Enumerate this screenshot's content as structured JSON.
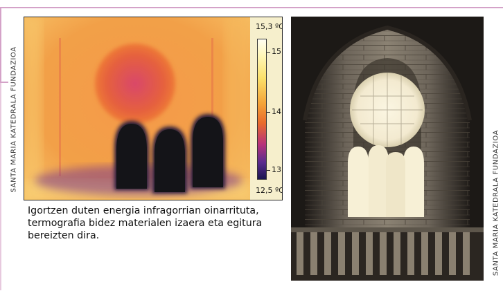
{
  "credits": {
    "left": "SANTA MARIA KATEDRALA FUNDAZIOA",
    "right": "SANTA MARIA KATEDRALA FUNDAZIOA"
  },
  "thermogram": {
    "scale_max": "15,3 ºC",
    "scale_min": "12,5 ºC",
    "ticks": [
      "15",
      "14",
      "13"
    ]
  },
  "caption": "Igortzen duten energia infragorrian oinarrituta, termografia bidez materialen izaera eta egitura bereizten dira.",
  "colors": {
    "frame": "#d4a2c8",
    "thermo_warm": "#f08c3c",
    "thermo_cold": "#1a1a2c"
  }
}
